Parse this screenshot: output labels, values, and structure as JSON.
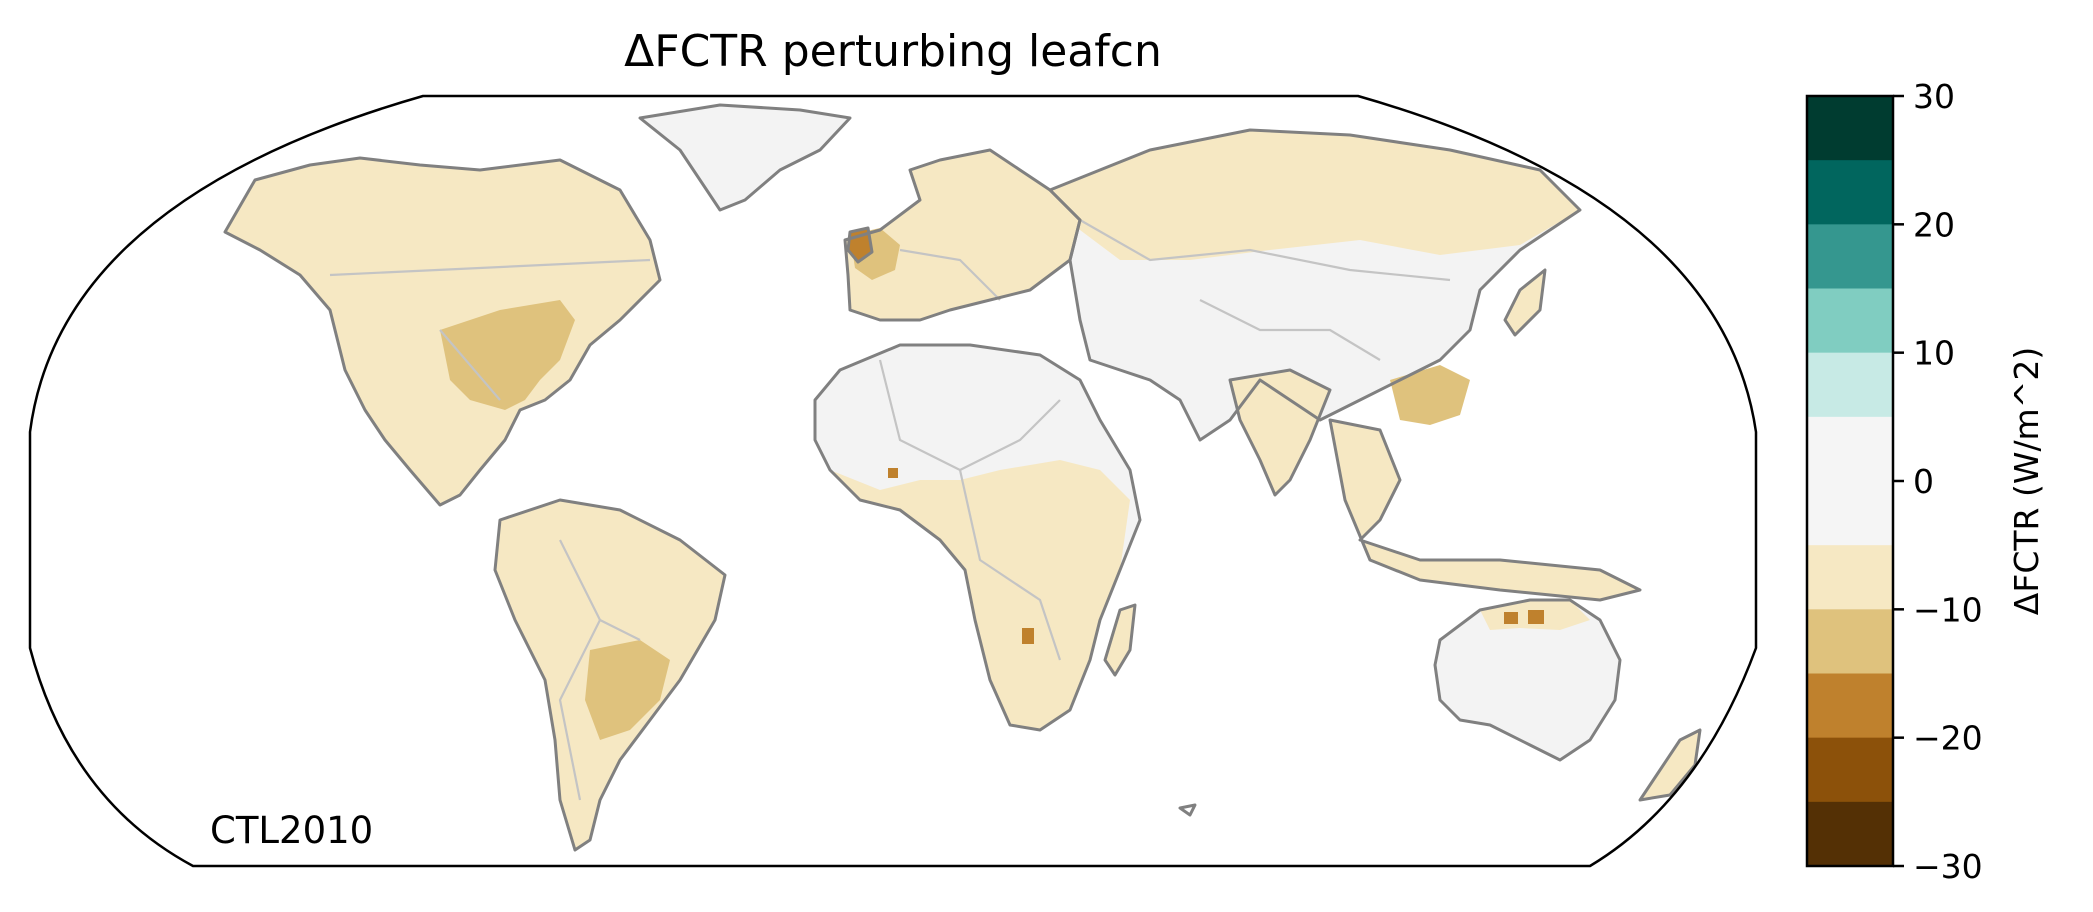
{
  "title": "ΔFCTR perturbing leafcn",
  "annotation": "CTL2010",
  "colorbar": {
    "label": "ΔFCTR (W/m^2)",
    "ticks": [
      {
        "value": 30,
        "label": "30"
      },
      {
        "value": 20,
        "label": "20"
      },
      {
        "value": 10,
        "label": "10"
      },
      {
        "value": 0,
        "label": "0"
      },
      {
        "value": -10,
        "label": "−10"
      },
      {
        "value": -20,
        "label": "−20"
      },
      {
        "value": -30,
        "label": "−30"
      }
    ],
    "range": [
      -30,
      30
    ],
    "bins": [
      {
        "from": 25,
        "to": 30,
        "color": "#003c30"
      },
      {
        "from": 20,
        "to": 25,
        "color": "#01665e"
      },
      {
        "from": 15,
        "to": 20,
        "color": "#35978f"
      },
      {
        "from": 10,
        "to": 15,
        "color": "#80cdc1"
      },
      {
        "from": 5,
        "to": 10,
        "color": "#c7eae5"
      },
      {
        "from": -5,
        "to": 5,
        "color": "#f5f5f5"
      },
      {
        "from": -10,
        "to": -5,
        "color": "#f6e8c3"
      },
      {
        "from": -15,
        "to": -10,
        "color": "#dfc27d"
      },
      {
        "from": -20,
        "to": -15,
        "color": "#bf812d"
      },
      {
        "from": -25,
        "to": -20,
        "color": "#8c510a"
      },
      {
        "from": -30,
        "to": -25,
        "color": "#543005"
      }
    ]
  },
  "map": {
    "projection": "Robinson",
    "colors": {
      "coastline": "#808080",
      "borders": "#c4c4c4",
      "frame": "#000000",
      "neutral": "#f3f3f3",
      "light": "#f6e8c3",
      "medium": "#dfc27d",
      "strong": "#bf812d"
    },
    "regions": [
      {
        "name": "north-america",
        "value": -6
      },
      {
        "name": "eastern-us",
        "value": -12
      },
      {
        "name": "south-america",
        "value": -7
      },
      {
        "name": "southern-brazil",
        "value": -12
      },
      {
        "name": "western-europe",
        "value": -13
      },
      {
        "name": "africa-sahel-south",
        "value": -7
      },
      {
        "name": "siberia",
        "value": -6
      },
      {
        "name": "south-china",
        "value": -12
      },
      {
        "name": "northern-australia",
        "value": -16
      },
      {
        "name": "sahara-arabia",
        "value": 0
      },
      {
        "name": "greenland",
        "value": 0
      }
    ]
  }
}
